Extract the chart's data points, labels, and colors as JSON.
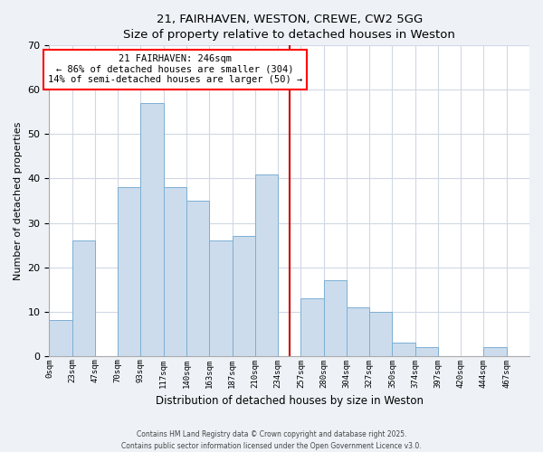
{
  "title": "21, FAIRHAVEN, WESTON, CREWE, CW2 5GG",
  "subtitle": "Size of property relative to detached houses in Weston",
  "xlabel": "Distribution of detached houses by size in Weston",
  "ylabel": "Number of detached properties",
  "bin_labels": [
    "0sqm",
    "23sqm",
    "47sqm",
    "70sqm",
    "93sqm",
    "117sqm",
    "140sqm",
    "163sqm",
    "187sqm",
    "210sqm",
    "234sqm",
    "257sqm",
    "280sqm",
    "304sqm",
    "327sqm",
    "350sqm",
    "374sqm",
    "397sqm",
    "420sqm",
    "444sqm",
    "467sqm"
  ],
  "bar_heights": [
    8,
    26,
    0,
    38,
    57,
    38,
    35,
    26,
    27,
    41,
    0,
    13,
    17,
    11,
    10,
    3,
    2,
    0,
    0,
    2,
    0
  ],
  "bar_color": "#ccdcec",
  "bar_edge_color": "#7bafd4",
  "ylim": [
    0,
    70
  ],
  "yticks": [
    0,
    10,
    20,
    30,
    40,
    50,
    60,
    70
  ],
  "property_line_color": "#cc0000",
  "annotation_title": "21 FAIRHAVEN: 246sqm",
  "annotation_line1": "← 86% of detached houses are smaller (304)",
  "annotation_line2": "14% of semi-detached houses are larger (50) →",
  "footer_line1": "Contains HM Land Registry data © Crown copyright and database right 2025.",
  "footer_line2": "Contains public sector information licensed under the Open Government Licence v3.0.",
  "background_color": "#eef2f7",
  "plot_background_color": "#ffffff",
  "grid_color": "#d0d8e4"
}
